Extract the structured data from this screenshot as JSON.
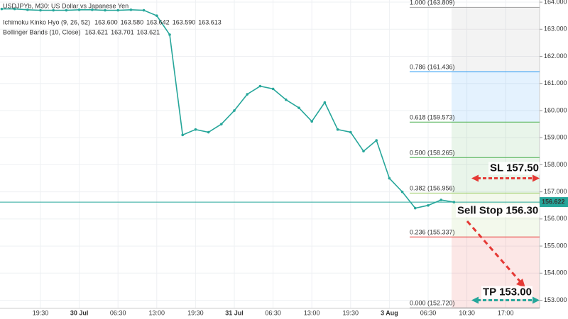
{
  "chart_data": {
    "type": "line",
    "title": "USDJPYb, M30: US Dollar vs Japanese Yen",
    "indicators": [
      {
        "name": "Ichimoku Kinko Hyo (9, 26, 52)",
        "readouts": [
          "163.600",
          "163.580",
          "163.642",
          "163.590",
          "163.613"
        ],
        "colors": [
          "#c0392b",
          "#3498db",
          "#27ae60",
          "#9b59b6",
          "#8e5a2b"
        ]
      },
      {
        "name": "Bollinger Bands (10, Close)",
        "readouts": [
          "163.621",
          "163.701",
          "163.621"
        ],
        "colors": [
          "#c0392b",
          "#2e86c1",
          "#2e86c1"
        ]
      }
    ],
    "categories": [
      null,
      null,
      null,
      "19:30",
      null,
      null,
      "30 Jul",
      null,
      null,
      "06:30",
      null,
      null,
      "13:00",
      null,
      null,
      "19:30",
      null,
      null,
      "31 Jul",
      null,
      null,
      "06:30",
      null,
      null,
      "13:00",
      null,
      null,
      "19:30",
      null,
      null,
      "3 Aug",
      null,
      null,
      "06:30",
      null,
      null,
      "10:30",
      null,
      null,
      "17:00",
      null,
      null
    ],
    "series": [
      {
        "color": "#26a69a",
        "values": [
          163.75,
          163.75,
          163.72,
          163.7,
          163.7,
          163.7,
          163.72,
          163.72,
          163.7,
          163.7,
          163.72,
          163.7,
          163.5,
          162.8,
          159.1,
          159.3,
          159.2,
          159.5,
          160.0,
          160.6,
          160.9,
          160.8,
          160.4,
          160.1,
          159.6,
          160.3,
          159.3,
          159.2,
          158.5,
          158.9,
          157.5,
          157.0,
          156.4,
          156.5,
          156.7,
          156.62,
          null,
          null,
          null,
          null,
          null,
          null
        ]
      }
    ],
    "current_price": {
      "value": 156.622,
      "label": "156.622",
      "color": "#26a69a"
    },
    "fib_levels": [
      {
        "label": "1.000 (163.809)",
        "value": 163.809,
        "color": "#9e9e9e"
      },
      {
        "label": "0.786 (161.436)",
        "value": 161.436,
        "color": "#2196f3"
      },
      {
        "label": "0.618 (159.573)",
        "value": 159.573,
        "color": "#4caf50"
      },
      {
        "label": "0.500 (158.265)",
        "value": 158.265,
        "color": "#4caf50"
      },
      {
        "label": "0.382 (156.956)",
        "value": 156.956,
        "color": "#9ccc65"
      },
      {
        "label": "0.236 (155.337)",
        "value": 155.337,
        "color": "#e53935"
      },
      {
        "label": "0.000 (152.720)",
        "value": 152.72,
        "color": "#9e9e9e"
      }
    ],
    "annotations": [
      {
        "text": "SL 157.50",
        "value": 157.5,
        "color": "#e53935"
      },
      {
        "text": "Sell Stop 156.30",
        "value": 156.3,
        "color": "#e53935"
      },
      {
        "text": "TP 153.00",
        "value": 153.0,
        "color": "#26a69a"
      }
    ],
    "ylim": [
      152.7,
      164.08
    ],
    "yticks": [
      {
        "value": 153,
        "label": "153.000"
      },
      {
        "value": 154,
        "label": "154.000"
      },
      {
        "value": 155,
        "label": "155.000"
      },
      {
        "value": 156,
        "label": "156.000"
      },
      {
        "value": 157,
        "label": "157.000"
      },
      {
        "value": 158,
        "label": "158.000"
      },
      {
        "value": 159,
        "label": "159.000"
      },
      {
        "value": 160,
        "label": "160.000"
      },
      {
        "value": 161,
        "label": "161.000"
      },
      {
        "value": 162,
        "label": "162.000"
      },
      {
        "value": 163,
        "label": "163.000"
      },
      {
        "value": 164,
        "label": "164.000"
      }
    ],
    "grid": true
  }
}
